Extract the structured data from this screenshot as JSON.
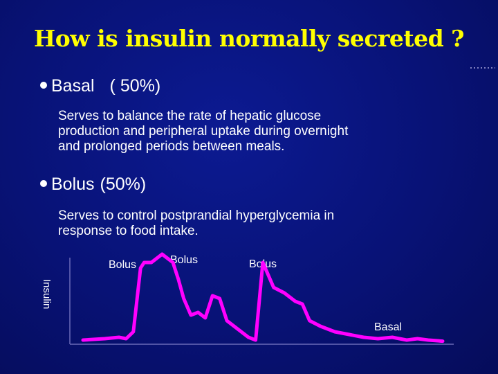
{
  "slide": {
    "title": "How is insulin normally secreted ?",
    "accent_color": "#ffff00",
    "line_color": "#ff00ff"
  },
  "basal": {
    "label": "Basal",
    "percent": "( 50%)",
    "description": [
      "Serves to balance the rate  of hepatic  glucose",
      "production  and peripheral uptake during overnight",
      "and prolonged periods between meals."
    ]
  },
  "bolus": {
    "label": "Bolus",
    "percent": "(50%)",
    "description": [
      "Serves to control postprandial hyperglycemia in",
      "response to food intake."
    ]
  },
  "chart_data": {
    "type": "line",
    "ylabel": "Insulin",
    "annotations": [
      "Bolus",
      "Bolus",
      "Bolus",
      "Basal"
    ],
    "series": [
      {
        "x": [
          0,
          6,
          10,
          12,
          14,
          16,
          17,
          19,
          22,
          25,
          26.5,
          28,
          30,
          32,
          34,
          36,
          38,
          40,
          43,
          46,
          48,
          50,
          53,
          56,
          59,
          61,
          63,
          66,
          70,
          74,
          78,
          82,
          86,
          90,
          93,
          96,
          100
        ],
        "y": [
          1,
          1.5,
          2,
          1.5,
          4,
          27,
          29,
          29,
          32,
          29,
          23,
          16,
          10,
          11,
          9,
          17,
          16,
          8,
          5,
          2,
          1,
          29,
          20,
          18,
          15,
          14,
          8,
          6,
          4,
          3,
          2,
          1.5,
          2,
          1,
          1.5,
          1,
          0.6
        ]
      }
    ],
    "xlim": [
      0,
      100
    ],
    "ylim": [
      0,
      40
    ],
    "grid": false
  }
}
